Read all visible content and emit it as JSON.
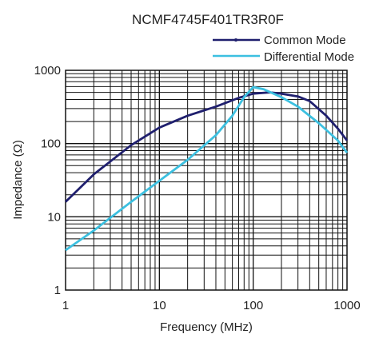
{
  "chart_data": {
    "type": "line",
    "title": "NCMF4745F401TR3R0F",
    "xlabel": "Frequency (MHz)",
    "ylabel": "Impedance (Ω)",
    "x_scale": "log",
    "y_scale": "log",
    "xlim": [
      1,
      1000
    ],
    "ylim": [
      1,
      1000
    ],
    "grid": true,
    "legend_position": "top-right",
    "x_ticks": [
      "1",
      "10",
      "100",
      "1000"
    ],
    "y_ticks": [
      "1",
      "10",
      "100",
      "1000"
    ],
    "series": [
      {
        "name": "Common Mode",
        "color": "#1f1f6e",
        "points": [
          [
            1,
            16
          ],
          [
            2,
            38
          ],
          [
            5,
            95
          ],
          [
            10,
            165
          ],
          [
            20,
            240
          ],
          [
            40,
            320
          ],
          [
            70,
            420
          ],
          [
            100,
            480
          ],
          [
            150,
            500
          ],
          [
            200,
            480
          ],
          [
            300,
            440
          ],
          [
            400,
            380
          ],
          [
            600,
            240
          ],
          [
            800,
            160
          ],
          [
            1000,
            110
          ]
        ]
      },
      {
        "name": "Differential Mode",
        "color": "#3cc0e0",
        "points": [
          [
            1,
            3.5
          ],
          [
            2,
            6.5
          ],
          [
            5,
            16
          ],
          [
            10,
            31
          ],
          [
            20,
            60
          ],
          [
            40,
            130
          ],
          [
            60,
            240
          ],
          [
            80,
            430
          ],
          [
            100,
            590
          ],
          [
            130,
            550
          ],
          [
            200,
            430
          ],
          [
            300,
            320
          ],
          [
            500,
            190
          ],
          [
            800,
            110
          ],
          [
            1000,
            75
          ]
        ]
      }
    ]
  }
}
